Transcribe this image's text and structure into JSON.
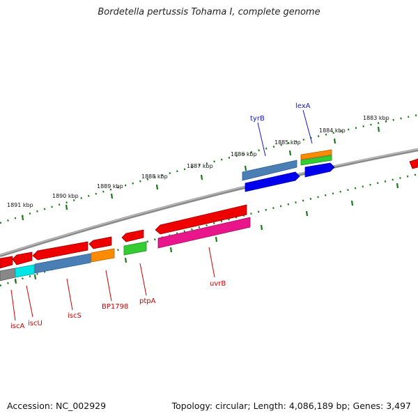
{
  "title": "Bordetella pertussis Tohama I, complete genome",
  "footer": {
    "accession": "Accession: NC_002929",
    "stats": "Topology: circular; Length: 4,086,189 bp; Genes: 3,497"
  },
  "scale_ticks": [
    "1891 kbp",
    "1890 kbp",
    "1889 kbp",
    "1888 kbp",
    "1887 kbp",
    "1886 kbp",
    "1885 kbp",
    "1884 kbp",
    "1883 kbp"
  ],
  "forward_genes": [
    {
      "label": "tyrB",
      "color": "#1515c8"
    },
    {
      "label": "lexA",
      "color": "#1515c8"
    }
  ],
  "reverse_genes": [
    {
      "label": "iscA",
      "color": "#cc0000"
    },
    {
      "label": "iscU",
      "color": "#cc0000"
    },
    {
      "label": "iscS",
      "color": "#cc0000"
    },
    {
      "label": "BP1798",
      "color": "#cc0000"
    },
    {
      "label": "ptpA",
      "color": "#cc0000"
    },
    {
      "label": "uvrB",
      "color": "#cc0000"
    }
  ],
  "colors": {
    "backbone": "#808080",
    "tick_green": "#1a7a1a",
    "forward_cds": "#0000ee",
    "reverse_cds": "#ee0000",
    "steelblue": "#4a7fb5",
    "orange": "#ff8c00",
    "green": "#33cc33",
    "magenta": "#e8168a",
    "cyan": "#00e5e5",
    "gray": "#888888"
  }
}
